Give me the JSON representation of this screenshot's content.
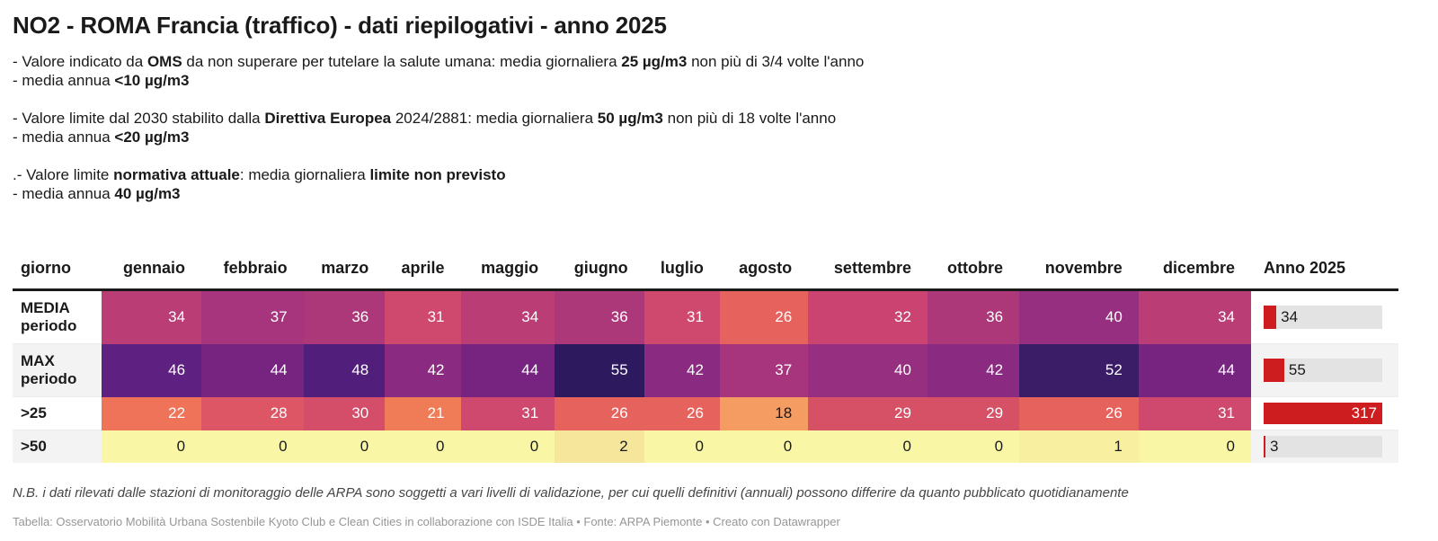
{
  "title": "NO2 - ROMA Francia (traffico) - dati riepilogativi - anno 2025",
  "notes": [
    {
      "lines": [
        [
          {
            "t": "- Valore indicato da "
          },
          {
            "t": "OMS",
            "b": true
          },
          {
            "t": " da non superare per tutelare la salute umana: media giornaliera "
          },
          {
            "t": "25 µg/m3",
            "b": true
          },
          {
            "t": " non più di 3/4 volte l'anno"
          }
        ],
        [
          {
            "t": "- media annua "
          },
          {
            "t": "<10 µg/m3",
            "b": true
          }
        ]
      ]
    },
    {
      "lines": [
        [
          {
            "t": "- Valore limite dal 2030 stabilito dalla "
          },
          {
            "t": "Direttiva Europea",
            "b": true
          },
          {
            "t": " 2024/2881: media giornaliera "
          },
          {
            "t": "50 µg/m3",
            "b": true
          },
          {
            "t": " non più di 18 volte l'anno"
          }
        ],
        [
          {
            "t": "- media annua "
          },
          {
            "t": "<20 µg/m3",
            "b": true
          }
        ]
      ]
    },
    {
      "lines": [
        [
          {
            "t": ".- Valore limite "
          },
          {
            "t": "normativa attuale",
            "b": true
          },
          {
            "t": ": media giornaliera "
          },
          {
            "t": "limite non previsto",
            "b": true
          }
        ],
        [
          {
            "t": "- media annua "
          },
          {
            "t": "40 µg/m3",
            "b": true
          }
        ]
      ]
    }
  ],
  "table": {
    "columns": [
      "giorno",
      "gennaio",
      "febbraio",
      "marzo",
      "aprile",
      "maggio",
      "giugno",
      "luglio",
      "agosto",
      "settembre",
      "ottobre",
      "novembre",
      "dicembre",
      "Anno 2025"
    ],
    "rows": [
      {
        "label": "MEDIA periodo",
        "values": [
          34,
          37,
          36,
          31,
          34,
          36,
          31,
          26,
          32,
          36,
          40,
          34
        ],
        "anno": 34
      },
      {
        "label": "MAX periodo",
        "values": [
          46,
          44,
          48,
          42,
          44,
          55,
          42,
          37,
          40,
          42,
          52,
          44
        ],
        "anno": 55
      },
      {
        "label": ">25",
        "values": [
          22,
          28,
          30,
          21,
          31,
          26,
          26,
          18,
          29,
          29,
          26,
          31
        ],
        "anno": 317
      },
      {
        "label": ">50",
        "values": [
          0,
          0,
          0,
          0,
          0,
          2,
          0,
          0,
          0,
          0,
          1,
          0
        ],
        "anno": 3
      }
    ],
    "bar_max": 317
  },
  "value_colors": {
    "0": "#f9f7a6",
    "1": "#f8f0a0",
    "2": "#f5e69b",
    "18": "#f59c63",
    "21": "#f07b57",
    "22": "#ee7358",
    "26": "#e6635d",
    "28": "#dc5665",
    "29": "#d75166",
    "30": "#d44d69",
    "31": "#cf486d",
    "32": "#ca4371",
    "34": "#bb3d75",
    "36": "#ac387a",
    "37": "#a7357d",
    "40": "#962f80",
    "42": "#8a2b81",
    "44": "#772481",
    "46": "#5f2181",
    "48": "#521e7b",
    "52": "#3a1c67",
    "55": "#2d1a5e"
  },
  "dark_text_max": 18,
  "colors": {
    "bar": "#ce1d1e",
    "bar_track": "#e3e3e3",
    "stripe": "#f3f3f3",
    "dark_text": "#1a1a1a",
    "light_text": "#ffffff",
    "header_rule": "#1a1a1a"
  },
  "footer": {
    "note": "N.B. i dati rilevati dalle stazioni di monitoraggio delle ARPA sono soggetti a vari livelli di validazione, per cui quelli definitivi (annuali) possono differire da quanto pubblicato quotidianamente",
    "attribution": "Tabella: Osservatorio Mobilità Urbana Sostenbile Kyoto Club e Clean Cities in collaborazione con ISDE Italia • Fonte: ARPA Piemonte • Creato con Datawrapper"
  },
  "chart_data": {
    "type": "table",
    "title": "NO2 - ROMA Francia (traffico) - dati riepilogativi - anno 2025",
    "categories": [
      "gennaio",
      "febbraio",
      "marzo",
      "aprile",
      "maggio",
      "giugno",
      "luglio",
      "agosto",
      "settembre",
      "ottobre",
      "novembre",
      "dicembre"
    ],
    "series": [
      {
        "name": "MEDIA periodo",
        "values": [
          34,
          37,
          36,
          31,
          34,
          36,
          31,
          26,
          32,
          36,
          40,
          34
        ],
        "anno_2025": 34
      },
      {
        "name": "MAX periodo",
        "values": [
          46,
          44,
          48,
          42,
          44,
          55,
          42,
          37,
          40,
          42,
          52,
          44
        ],
        "anno_2025": 55
      },
      {
        "name": ">25",
        "values": [
          22,
          28,
          30,
          21,
          31,
          26,
          26,
          18,
          29,
          29,
          26,
          31
        ],
        "anno_2025": 317
      },
      {
        "name": ">50",
        "values": [
          0,
          0,
          0,
          0,
          0,
          2,
          0,
          0,
          0,
          0,
          1,
          0
        ],
        "anno_2025": 3
      }
    ],
    "anno_bar_max": 317,
    "anno_bar_color": "#ce1d1e",
    "heatmap_palette": "magma reversed (low = pale yellow, high = dark purple)",
    "legend_position": "none",
    "grid": false
  }
}
